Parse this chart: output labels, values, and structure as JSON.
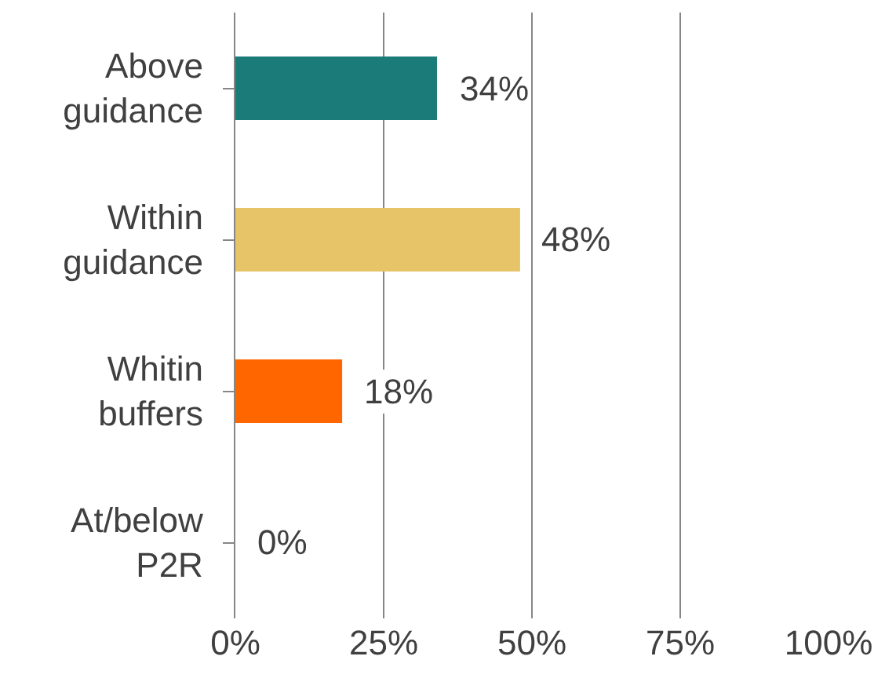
{
  "chart_data": {
    "type": "bar",
    "orientation": "horizontal",
    "categories": [
      "Above guidance",
      "Within guidance",
      "Whitin buffers",
      "At/below P2R"
    ],
    "values": [
      34,
      48,
      18,
      0
    ],
    "colors": [
      "#1a7b79",
      "#e8c468",
      "#ff6600",
      "#a5a5a5"
    ],
    "value_labels": [
      "34%",
      "48%",
      "18%",
      "0%"
    ],
    "xlim": [
      0,
      100
    ],
    "xticks": [
      {
        "value": 0,
        "label": "0%"
      },
      {
        "value": 25,
        "label": "25%"
      },
      {
        "value": 50,
        "label": "50%"
      },
      {
        "value": 75,
        "label": "75%"
      },
      {
        "value": 100,
        "label": "100%"
      }
    ],
    "grid": "x",
    "legend": false
  }
}
